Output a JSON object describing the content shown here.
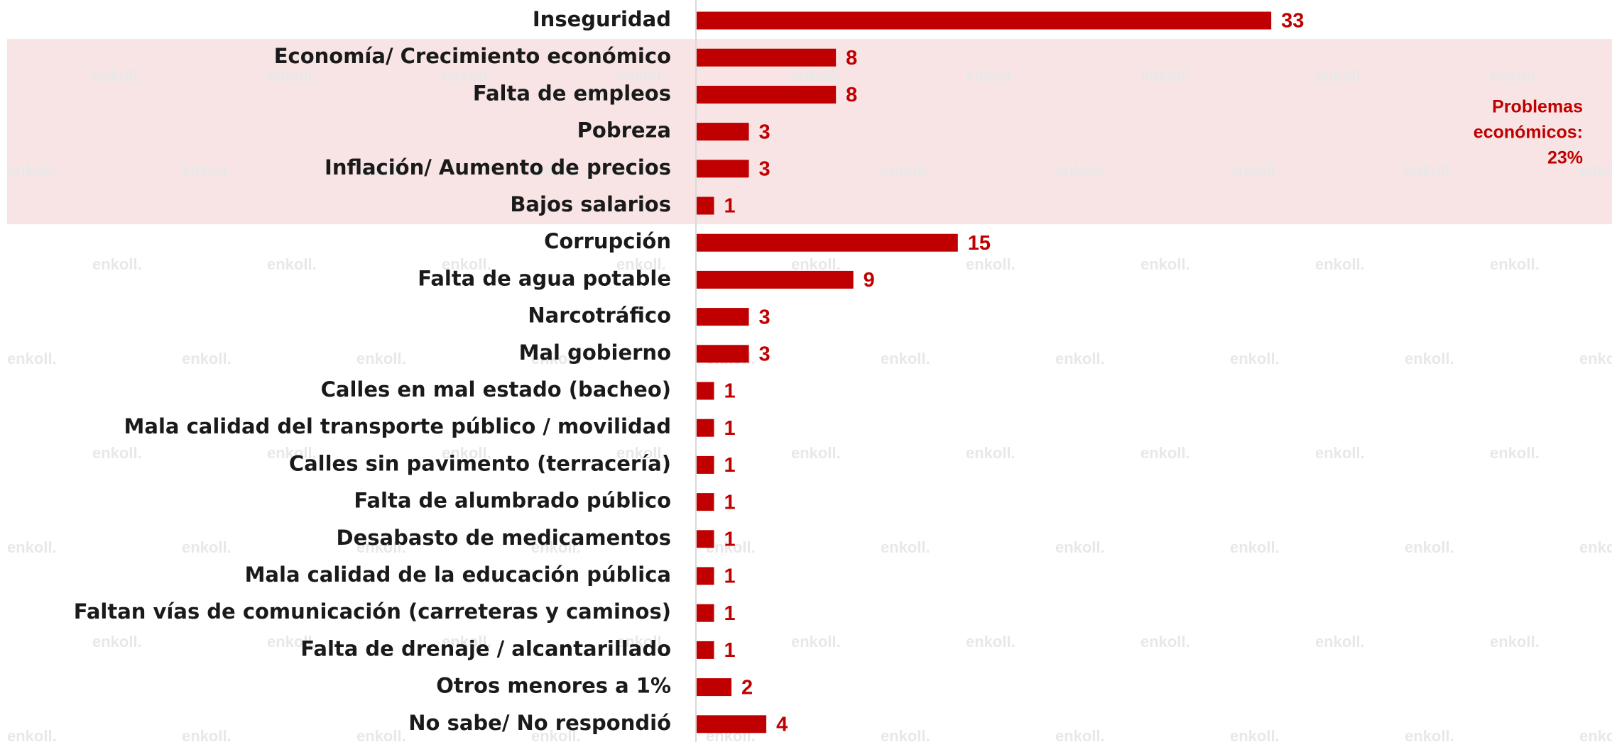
{
  "chart_data": {
    "type": "barh",
    "categories": [
      "Inseguridad",
      "Economía/ Crecimiento económico",
      "Falta de empleos",
      "Pobreza",
      "Inflación/ Aumento de precios",
      "Bajos salarios",
      "Corrupción",
      "Falta de agua potable",
      "Narcotráfico",
      "Mal gobierno",
      "Calles en mal estado (bacheo)",
      "Mala calidad del transporte público / movilidad",
      "Calles sin pavimento (terracería)",
      "Falta de alumbrado público",
      "Desabasto de medicamentos",
      "Mala calidad de la educación pública",
      "Faltan vías de comunicación (carreteras y caminos)",
      "Falta de drenaje / alcantarillado",
      "Otros menores a 1%",
      "No sabe/ No respondió"
    ],
    "values": [
      33,
      8,
      8,
      3,
      3,
      1,
      15,
      9,
      3,
      3,
      1,
      1,
      1,
      1,
      1,
      1,
      1,
      1,
      2,
      4
    ],
    "color": "#c00000",
    "xlim": [
      0,
      50
    ],
    "highlight": {
      "from": 1,
      "to": 5,
      "color": "#f8e4e4",
      "text": [
        "Problemas",
        "económicos:",
        "23%"
      ]
    },
    "watermark": "enkoll."
  }
}
